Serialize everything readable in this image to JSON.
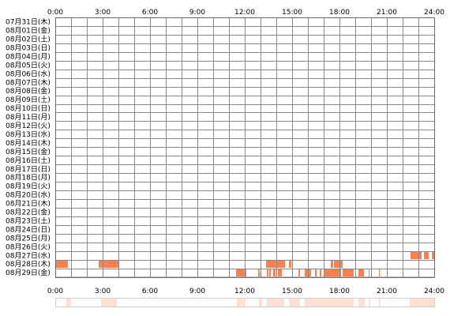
{
  "chart_data": {
    "type": "heatmap",
    "title": "",
    "x_ticks": [
      "0:00",
      "3:00",
      "6:00",
      "9:00",
      "12:00",
      "15:00",
      "18:00",
      "21:00",
      "24:00"
    ],
    "x_range_hours": [
      0,
      24
    ],
    "rows": [
      {
        "label": "07月31日(木)",
        "segments": []
      },
      {
        "label": "08月01日(金)",
        "segments": []
      },
      {
        "label": "08月02日(土)",
        "segments": []
      },
      {
        "label": "08月03日(日)",
        "segments": []
      },
      {
        "label": "08月04日(月)",
        "segments": []
      },
      {
        "label": "08月05日(火)",
        "segments": []
      },
      {
        "label": "08月06日(水)",
        "segments": []
      },
      {
        "label": "08月07日(木)",
        "segments": []
      },
      {
        "label": "08月08日(金)",
        "segments": []
      },
      {
        "label": "08月09日(土)",
        "segments": []
      },
      {
        "label": "08月10日(日)",
        "segments": []
      },
      {
        "label": "08月11日(月)",
        "segments": []
      },
      {
        "label": "08月12日(火)",
        "segments": []
      },
      {
        "label": "08月13日(水)",
        "segments": []
      },
      {
        "label": "08月14日(木)",
        "segments": []
      },
      {
        "label": "08月15日(金)",
        "segments": []
      },
      {
        "label": "08月16日(土)",
        "segments": []
      },
      {
        "label": "08月17日(日)",
        "segments": []
      },
      {
        "label": "08月18日(月)",
        "segments": []
      },
      {
        "label": "08月19日(火)",
        "segments": []
      },
      {
        "label": "08月20日(水)",
        "segments": []
      },
      {
        "label": "08月21日(木)",
        "segments": []
      },
      {
        "label": "08月22日(金)",
        "segments": []
      },
      {
        "label": "08月23日(土)",
        "segments": []
      },
      {
        "label": "08月24日(日)",
        "segments": []
      },
      {
        "label": "08月25日(月)",
        "segments": []
      },
      {
        "label": "08月26日(火)",
        "segments": []
      },
      {
        "label": "08月27日(水)",
        "segments": [
          [
            22.5,
            23.2
          ],
          [
            23.35,
            23.65
          ],
          [
            23.85,
            24.0
          ]
        ]
      },
      {
        "label": "08月28日(木)",
        "segments": [
          [
            0.05,
            0.8
          ],
          [
            2.75,
            4.0
          ],
          [
            13.35,
            14.55
          ],
          [
            14.8,
            14.95
          ],
          [
            17.45,
            17.6
          ],
          [
            17.65,
            18.2
          ]
        ]
      },
      {
        "label": "08月29日(金)",
        "segments": [
          [
            11.45,
            12.1
          ],
          [
            12.85,
            12.95
          ],
          [
            13.4,
            13.5
          ],
          [
            13.55,
            13.65
          ],
          [
            13.8,
            13.95
          ],
          [
            14.1,
            14.35
          ],
          [
            15.0,
            15.05
          ],
          [
            15.4,
            15.5
          ],
          [
            15.8,
            16.2
          ],
          [
            16.45,
            16.55
          ],
          [
            16.75,
            16.85
          ],
          [
            17.0,
            18.1
          ],
          [
            18.2,
            18.9
          ],
          [
            19.2,
            19.55
          ],
          [
            19.85,
            19.9
          ],
          [
            20.5,
            20.55
          ]
        ]
      }
    ],
    "summary_bands": [
      [
        0.7,
        1.0
      ],
      [
        2.9,
        3.9
      ],
      [
        11.5,
        12.05
      ],
      [
        12.9,
        13.1
      ],
      [
        13.4,
        14.5
      ],
      [
        14.8,
        15.5
      ],
      [
        15.8,
        18.9
      ],
      [
        19.2,
        19.6
      ],
      [
        19.85,
        19.95
      ],
      [
        20.5,
        20.6
      ],
      [
        22.45,
        24.0
      ]
    ],
    "grid": true
  },
  "colors": {
    "segment": "#ff7f4f",
    "summary_band": "#ffe0d3",
    "grid_line": "#888888",
    "border": "#666666",
    "background": "#ffffff"
  }
}
